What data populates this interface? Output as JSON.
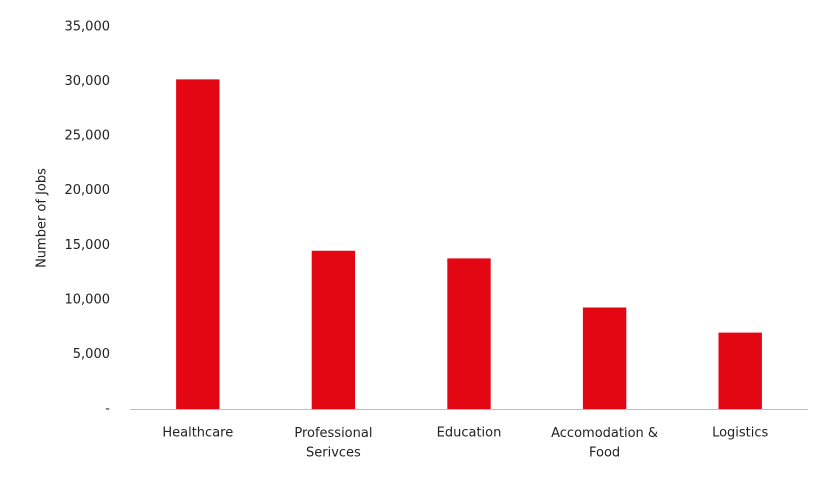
{
  "chart_data": {
    "type": "bar",
    "y_label": "Number of Jobs",
    "categories": [
      "Healthcare",
      "Professional\nSerivces",
      "Education",
      "Accomodation &\nFood",
      "Logistics"
    ],
    "values": [
      30200,
      14500,
      13800,
      9300,
      7000
    ],
    "color": "#e30613",
    "ylim": [
      0,
      35000
    ],
    "yticks": [
      {
        "value": 0,
        "label": "-"
      },
      {
        "value": 5000,
        "label": "5,000"
      },
      {
        "value": 10000,
        "label": "10,000"
      },
      {
        "value": 15000,
        "label": "15,000"
      },
      {
        "value": 20000,
        "label": "20,000"
      },
      {
        "value": 25000,
        "label": "25,000"
      },
      {
        "value": 30000,
        "label": "30,000"
      },
      {
        "value": 35000,
        "label": "35,000"
      }
    ],
    "grid": false
  }
}
